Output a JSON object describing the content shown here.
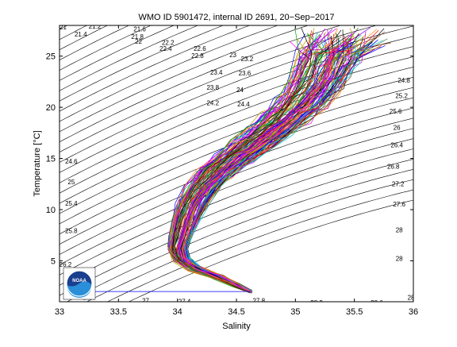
{
  "chart_data": {
    "type": "line",
    "title": "WMO ID 5901472, internal ID 2691, 20−Sep−2017",
    "xlabel": "Salinity",
    "ylabel": "Temperature [°C]",
    "xlim": [
      33,
      36
    ],
    "ylim": [
      1.0,
      28.0
    ],
    "x_ticks": [
      33,
      33.5,
      34,
      34.5,
      35,
      35.5,
      36
    ],
    "x_tick_labels": [
      "33",
      "33.5",
      "34",
      "34.5",
      "35",
      "35.5",
      "36"
    ],
    "y_ticks": [
      5,
      10,
      15,
      20,
      25
    ],
    "y_tick_labels": [
      "5",
      "10",
      "15",
      "20",
      "25"
    ],
    "grid": false,
    "legend": "none",
    "density_contours": {
      "color": "#000000",
      "labels": [
        {
          "text": "21.2",
          "x": 33.3,
          "y": 27.7
        },
        {
          "text": "21",
          "x": 33.03,
          "y": 27.6
        },
        {
          "text": "21.4",
          "x": 33.18,
          "y": 26.9
        },
        {
          "text": "21.6",
          "x": 33.68,
          "y": 27.4
        },
        {
          "text": "21.8",
          "x": 33.66,
          "y": 26.7
        },
        {
          "text": "22",
          "x": 33.67,
          "y": 26.2
        },
        {
          "text": "22.2",
          "x": 33.92,
          "y": 26.1
        },
        {
          "text": "22.4",
          "x": 33.9,
          "y": 25.5
        },
        {
          "text": "22.6",
          "x": 34.19,
          "y": 25.5
        },
        {
          "text": "22.8",
          "x": 34.17,
          "y": 24.8
        },
        {
          "text": "23",
          "x": 34.47,
          "y": 24.9
        },
        {
          "text": "23.2",
          "x": 34.59,
          "y": 24.5
        },
        {
          "text": "23.4",
          "x": 34.33,
          "y": 23.2
        },
        {
          "text": "23.6",
          "x": 34.57,
          "y": 23.1
        },
        {
          "text": "23.8",
          "x": 34.3,
          "y": 21.7
        },
        {
          "text": "24",
          "x": 34.53,
          "y": 21.5
        },
        {
          "text": "24.2",
          "x": 34.3,
          "y": 20.2
        },
        {
          "text": "24.4",
          "x": 34.56,
          "y": 20.1
        },
        {
          "text": "24.6",
          "x": 33.1,
          "y": 14.5
        },
        {
          "text": "24.8",
          "x": 35.92,
          "y": 22.4
        },
        {
          "text": "25",
          "x": 33.1,
          "y": 12.5
        },
        {
          "text": "25.2",
          "x": 35.9,
          "y": 20.9
        },
        {
          "text": "25.4",
          "x": 33.1,
          "y": 10.4
        },
        {
          "text": "25.6",
          "x": 35.85,
          "y": 19.4
        },
        {
          "text": "25.8",
          "x": 33.1,
          "y": 7.7
        },
        {
          "text": "26",
          "x": 35.86,
          "y": 17.8
        },
        {
          "text": "26.2",
          "x": 33.05,
          "y": 4.4
        },
        {
          "text": "26.4",
          "x": 35.86,
          "y": 16.1
        },
        {
          "text": "26.6",
          "x": 33.25,
          "y": 1.2
        },
        {
          "text": "26.8",
          "x": 35.83,
          "y": 14.0
        },
        {
          "text": "27",
          "x": 33.73,
          "y": 0.9
        },
        {
          "text": "27.2",
          "x": 35.87,
          "y": 12.3
        },
        {
          "text": "27.4",
          "x": 34.06,
          "y": 0.8
        },
        {
          "text": "27.6",
          "x": 35.88,
          "y": 10.3
        },
        {
          "text": "27.8",
          "x": 34.69,
          "y": 0.9
        },
        {
          "text": "28",
          "x": 35.88,
          "y": 7.8
        },
        {
          "text": "28",
          "x": 35.88,
          "y": 5.0
        },
        {
          "text": "28.2",
          "x": 35.18,
          "y": 0.7
        },
        {
          "text": "28.6",
          "x": 35.69,
          "y": 0.7
        },
        {
          "text": "28",
          "x": 35.98,
          "y": 1.2
        }
      ]
    },
    "series": [
      {
        "color": "#0000ff"
      },
      {
        "color": "#ff0000"
      },
      {
        "color": "#00a000"
      },
      {
        "color": "#00c0c0"
      },
      {
        "color": "#c000c0"
      },
      {
        "color": "#c0a000"
      },
      {
        "color": "#000000"
      },
      {
        "color": "#7f00ff"
      },
      {
        "color": "#ff7f00"
      },
      {
        "color": "#3f7f3f"
      },
      {
        "color": "#7f3f1f"
      },
      {
        "color": "#ff00ff"
      }
    ],
    "profile_envelope": {
      "count": 120,
      "deep_end": {
        "x": 34.62,
        "y": 2.0
      },
      "bottom_line": {
        "x": [
          33.3,
          34.62
        ],
        "y": [
          2.0,
          2.0
        ]
      }
    }
  },
  "logo": {
    "text": "NOAA"
  }
}
